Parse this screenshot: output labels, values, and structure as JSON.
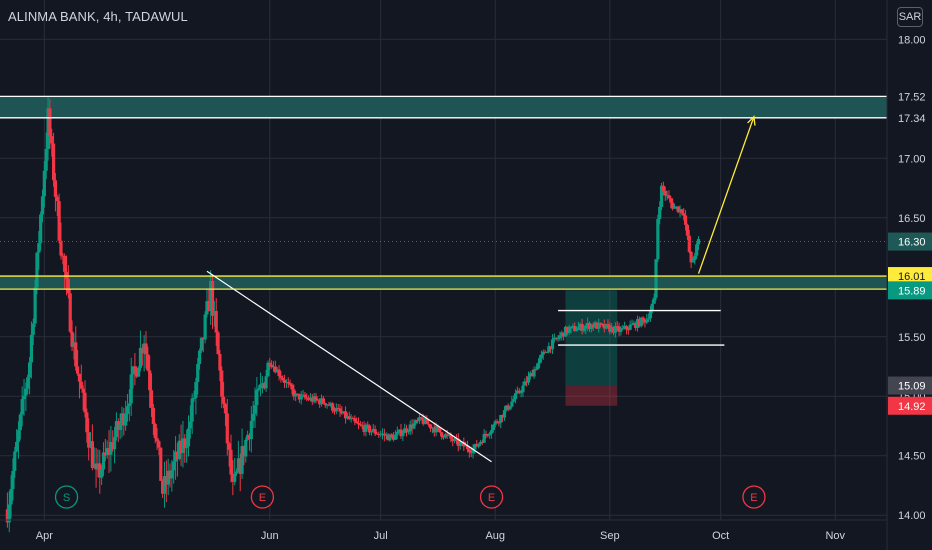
{
  "chart_data": {
    "type": "candlestick",
    "title": "ALINMA BANK, 4h, TADAWUL",
    "currency": "SAR",
    "ylim": [
      13.96,
      18.33
    ],
    "y_ticks": [
      14.0,
      14.5,
      15.0,
      15.5,
      16.0,
      16.5,
      17.0,
      17.5,
      18.0
    ],
    "y_tick_labels": [
      "14.00",
      "14.50",
      "15.00",
      "15.50",
      "16.00",
      "16.50",
      "17.00",
      "17.50",
      "18.00"
    ],
    "x_labels": [
      "Apr",
      "Jun",
      "Jul",
      "Aug",
      "Sep",
      "Oct",
      "Nov"
    ],
    "date_range": [
      "2022-03-20",
      "2022-11-15"
    ],
    "candle_range": [
      "2022-03-22",
      "2022-09-25"
    ],
    "x_ticks": [
      "2022-04-01",
      "2022-06-01",
      "2022-07-01",
      "2022-08-01",
      "2022-09-01",
      "2022-10-01",
      "2022-11-01"
    ],
    "key_prices": [
      {
        "date": "2022-03-22",
        "price": 14.05
      },
      {
        "date": "2022-03-28",
        "price": 15.3
      },
      {
        "date": "2022-04-02",
        "price": 17.34
      },
      {
        "date": "2022-04-05",
        "price": 16.4
      },
      {
        "date": "2022-04-09",
        "price": 15.4
      },
      {
        "date": "2022-04-15",
        "price": 14.3
      },
      {
        "date": "2022-04-22",
        "price": 14.8
      },
      {
        "date": "2022-04-28",
        "price": 15.5
      },
      {
        "date": "2022-05-03",
        "price": 14.2
      },
      {
        "date": "2022-05-10",
        "price": 14.7
      },
      {
        "date": "2022-05-16",
        "price": 15.9
      },
      {
        "date": "2022-05-22",
        "price": 14.2
      },
      {
        "date": "2022-05-27",
        "price": 14.8
      },
      {
        "date": "2022-06-01",
        "price": 15.3
      },
      {
        "date": "2022-06-08",
        "price": 15.0
      },
      {
        "date": "2022-06-16",
        "price": 14.95
      },
      {
        "date": "2022-06-25",
        "price": 14.75
      },
      {
        "date": "2022-07-04",
        "price": 14.65
      },
      {
        "date": "2022-07-12",
        "price": 14.8
      },
      {
        "date": "2022-07-22",
        "price": 14.6
      },
      {
        "date": "2022-07-26",
        "price": 14.55
      },
      {
        "date": "2022-08-03",
        "price": 14.85
      },
      {
        "date": "2022-08-09",
        "price": 15.1
      },
      {
        "date": "2022-08-15",
        "price": 15.4
      },
      {
        "date": "2022-08-20",
        "price": 15.55
      },
      {
        "date": "2022-08-27",
        "price": 15.6
      },
      {
        "date": "2022-09-04",
        "price": 15.55
      },
      {
        "date": "2022-09-11",
        "price": 15.65
      },
      {
        "date": "2022-09-13",
        "price": 15.8
      },
      {
        "date": "2022-09-14",
        "price": 16.5
      },
      {
        "date": "2022-09-15",
        "price": 16.75
      },
      {
        "date": "2022-09-18",
        "price": 16.6
      },
      {
        "date": "2022-09-21",
        "price": 16.55
      },
      {
        "date": "2022-09-23",
        "price": 16.1
      },
      {
        "date": "2022-09-25",
        "price": 16.3
      }
    ],
    "zones": [
      {
        "name": "resistance",
        "from": 17.34,
        "to": 17.52,
        "color": "#1f5957"
      },
      {
        "name": "support",
        "from": 15.9,
        "to": 16.01,
        "color": "#1f5957"
      }
    ],
    "horizontal_lines": [
      {
        "price": 17.52,
        "color": "#ffffff"
      },
      {
        "price": 17.34,
        "color": "#ffffff"
      },
      {
        "price": 16.01,
        "color": "#ffeb3b"
      },
      {
        "price": 15.9,
        "color": "#ffeb3b"
      }
    ],
    "last_price_line": 16.3,
    "range_box_lines": [
      {
        "price": 15.72,
        "from": "2022-08-18",
        "to": "2022-10-01"
      },
      {
        "price": 15.43,
        "from": "2022-08-18",
        "to": "2022-10-02"
      }
    ],
    "position": {
      "from": "2022-08-20",
      "to": "2022-09-03",
      "entry": 15.09,
      "target": 15.89,
      "stop": 14.92
    },
    "trendline": {
      "start": [
        "2022-05-15",
        16.05
      ],
      "end": [
        "2022-07-31",
        14.45
      ]
    },
    "projection": {
      "start": [
        "2022-09-25",
        16.03
      ],
      "end": [
        "2022-10-10",
        17.35
      ]
    },
    "events": [
      {
        "label": "S",
        "date": "2022-04-07",
        "color": "#089981"
      },
      {
        "label": "E",
        "date": "2022-05-30",
        "color": "#f23645"
      },
      {
        "label": "E",
        "date": "2022-07-31",
        "color": "#f23645"
      },
      {
        "label": "E",
        "date": "2022-10-10",
        "color": "#f23645"
      }
    ],
    "price_labels": [
      {
        "text": "17.52",
        "price": 17.52,
        "bg": "#131722",
        "fg": "#d1d4dc"
      },
      {
        "text": "17.34",
        "price": 17.34,
        "bg": "#131722",
        "fg": "#d1d4dc"
      },
      {
        "text": "16.30",
        "price": 16.3,
        "bg": "#1f5957",
        "fg": "#ffffff"
      },
      {
        "text": "16.01",
        "price": 16.01,
        "bg": "#ffeb3b",
        "fg": "#131722"
      },
      {
        "text": "15.90",
        "price": 15.9,
        "bg": "#ffeb3b",
        "fg": "#131722"
      },
      {
        "text": "15.89",
        "price": 15.89,
        "bg": "#089981",
        "fg": "#ffffff"
      },
      {
        "text": "15.09",
        "price": 15.09,
        "bg": "#434651",
        "fg": "#ffffff"
      },
      {
        "text": "14.92",
        "price": 14.92,
        "bg": "#f23645",
        "fg": "#ffffff"
      }
    ],
    "colors": {
      "up": "#089981",
      "down": "#f23645",
      "background": "#131722",
      "grid": "#2a2e39",
      "text": "#d1d4dc"
    }
  }
}
